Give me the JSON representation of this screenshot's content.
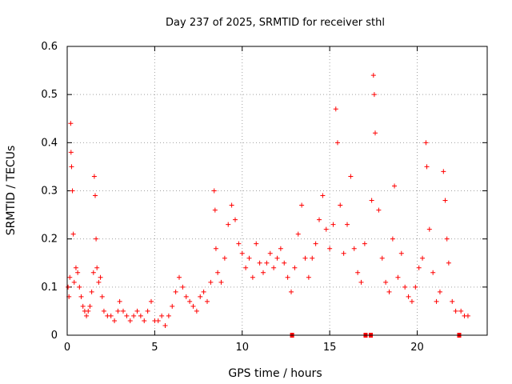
{
  "chart_data": {
    "type": "scatter",
    "title": "Day 237 of 2025, SRMTID for receiver sthl",
    "xlabel": "GPS time / hours",
    "ylabel": "SRMTID / TECUs",
    "xlim": [
      0,
      24
    ],
    "ylim": [
      0,
      0.6
    ],
    "xticks": [
      0,
      5,
      10,
      15,
      20
    ],
    "yticks": [
      0,
      0.1,
      0.2,
      0.3,
      0.4,
      0.5,
      0.6
    ],
    "xtick_labels": [
      "0",
      "5",
      "10",
      "15",
      "20"
    ],
    "ytick_labels": [
      "0",
      "0.1",
      "0.2",
      "0.3",
      "0.4",
      "0.5",
      "0.6"
    ],
    "grid": true,
    "marker": "plus",
    "color": "#ff0000",
    "data_gaps_hours": [
      12.85,
      17.05,
      17.35,
      22.4
    ],
    "series": [
      {
        "name": "SRMTID",
        "points": [
          [
            0.05,
            0.1
          ],
          [
            0.1,
            0.08
          ],
          [
            0.15,
            0.12
          ],
          [
            0.2,
            0.44
          ],
          [
            0.22,
            0.38
          ],
          [
            0.25,
            0.35
          ],
          [
            0.3,
            0.3
          ],
          [
            0.35,
            0.21
          ],
          [
            0.4,
            0.11
          ],
          [
            0.5,
            0.14
          ],
          [
            0.6,
            0.13
          ],
          [
            0.7,
            0.1
          ],
          [
            0.8,
            0.08
          ],
          [
            0.9,
            0.06
          ],
          [
            1.0,
            0.05
          ],
          [
            1.1,
            0.04
          ],
          [
            1.2,
            0.05
          ],
          [
            1.3,
            0.06
          ],
          [
            1.4,
            0.09
          ],
          [
            1.5,
            0.13
          ],
          [
            1.55,
            0.33
          ],
          [
            1.6,
            0.29
          ],
          [
            1.65,
            0.2
          ],
          [
            1.7,
            0.14
          ],
          [
            1.8,
            0.11
          ],
          [
            1.9,
            0.12
          ],
          [
            2.0,
            0.08
          ],
          [
            2.1,
            0.05
          ],
          [
            2.3,
            0.04
          ],
          [
            2.5,
            0.04
          ],
          [
            2.7,
            0.03
          ],
          [
            2.9,
            0.05
          ],
          [
            3.0,
            0.07
          ],
          [
            3.2,
            0.05
          ],
          [
            3.4,
            0.04
          ],
          [
            3.6,
            0.03
          ],
          [
            3.8,
            0.04
          ],
          [
            4.0,
            0.05
          ],
          [
            4.2,
            0.04
          ],
          [
            4.4,
            0.03
          ],
          [
            4.6,
            0.05
          ],
          [
            4.8,
            0.07
          ],
          [
            5.0,
            0.03
          ],
          [
            5.2,
            0.03
          ],
          [
            5.4,
            0.04
          ],
          [
            5.6,
            0.02
          ],
          [
            5.8,
            0.04
          ],
          [
            6.0,
            0.06
          ],
          [
            6.2,
            0.09
          ],
          [
            6.4,
            0.12
          ],
          [
            6.6,
            0.1
          ],
          [
            6.8,
            0.08
          ],
          [
            7.0,
            0.07
          ],
          [
            7.2,
            0.06
          ],
          [
            7.4,
            0.05
          ],
          [
            7.6,
            0.08
          ],
          [
            7.8,
            0.09
          ],
          [
            8.0,
            0.07
          ],
          [
            8.2,
            0.11
          ],
          [
            8.4,
            0.3
          ],
          [
            8.45,
            0.26
          ],
          [
            8.5,
            0.18
          ],
          [
            8.6,
            0.13
          ],
          [
            8.8,
            0.11
          ],
          [
            9.0,
            0.16
          ],
          [
            9.2,
            0.23
          ],
          [
            9.4,
            0.27
          ],
          [
            9.6,
            0.24
          ],
          [
            9.8,
            0.19
          ],
          [
            10.0,
            0.17
          ],
          [
            10.2,
            0.14
          ],
          [
            10.4,
            0.16
          ],
          [
            10.6,
            0.12
          ],
          [
            10.8,
            0.19
          ],
          [
            11.0,
            0.15
          ],
          [
            11.2,
            0.13
          ],
          [
            11.4,
            0.15
          ],
          [
            11.6,
            0.17
          ],
          [
            11.8,
            0.14
          ],
          [
            12.0,
            0.16
          ],
          [
            12.2,
            0.18
          ],
          [
            12.4,
            0.15
          ],
          [
            12.6,
            0.12
          ],
          [
            12.8,
            0.09
          ],
          [
            13.0,
            0.14
          ],
          [
            13.2,
            0.21
          ],
          [
            13.4,
            0.27
          ],
          [
            13.6,
            0.16
          ],
          [
            13.8,
            0.12
          ],
          [
            14.0,
            0.16
          ],
          [
            14.2,
            0.19
          ],
          [
            14.4,
            0.24
          ],
          [
            14.6,
            0.29
          ],
          [
            14.8,
            0.22
          ],
          [
            15.0,
            0.18
          ],
          [
            15.2,
            0.23
          ],
          [
            15.35,
            0.47
          ],
          [
            15.45,
            0.4
          ],
          [
            15.6,
            0.27
          ],
          [
            15.8,
            0.17
          ],
          [
            16.0,
            0.23
          ],
          [
            16.2,
            0.33
          ],
          [
            16.4,
            0.18
          ],
          [
            16.6,
            0.13
          ],
          [
            16.8,
            0.11
          ],
          [
            17.0,
            0.19
          ],
          [
            17.4,
            0.28
          ],
          [
            17.5,
            0.54
          ],
          [
            17.55,
            0.5
          ],
          [
            17.6,
            0.42
          ],
          [
            17.8,
            0.26
          ],
          [
            18.0,
            0.16
          ],
          [
            18.2,
            0.11
          ],
          [
            18.4,
            0.09
          ],
          [
            18.6,
            0.2
          ],
          [
            18.7,
            0.31
          ],
          [
            18.9,
            0.12
          ],
          [
            19.1,
            0.17
          ],
          [
            19.3,
            0.1
          ],
          [
            19.5,
            0.08
          ],
          [
            19.7,
            0.07
          ],
          [
            19.9,
            0.1
          ],
          [
            20.1,
            0.14
          ],
          [
            20.3,
            0.16
          ],
          [
            20.5,
            0.4
          ],
          [
            20.55,
            0.35
          ],
          [
            20.7,
            0.22
          ],
          [
            20.9,
            0.13
          ],
          [
            21.1,
            0.07
          ],
          [
            21.3,
            0.09
          ],
          [
            21.5,
            0.34
          ],
          [
            21.6,
            0.28
          ],
          [
            21.7,
            0.2
          ],
          [
            21.8,
            0.15
          ],
          [
            22.0,
            0.07
          ],
          [
            22.2,
            0.05
          ],
          [
            22.5,
            0.05
          ],
          [
            22.7,
            0.04
          ],
          [
            22.9,
            0.04
          ]
        ]
      }
    ]
  }
}
